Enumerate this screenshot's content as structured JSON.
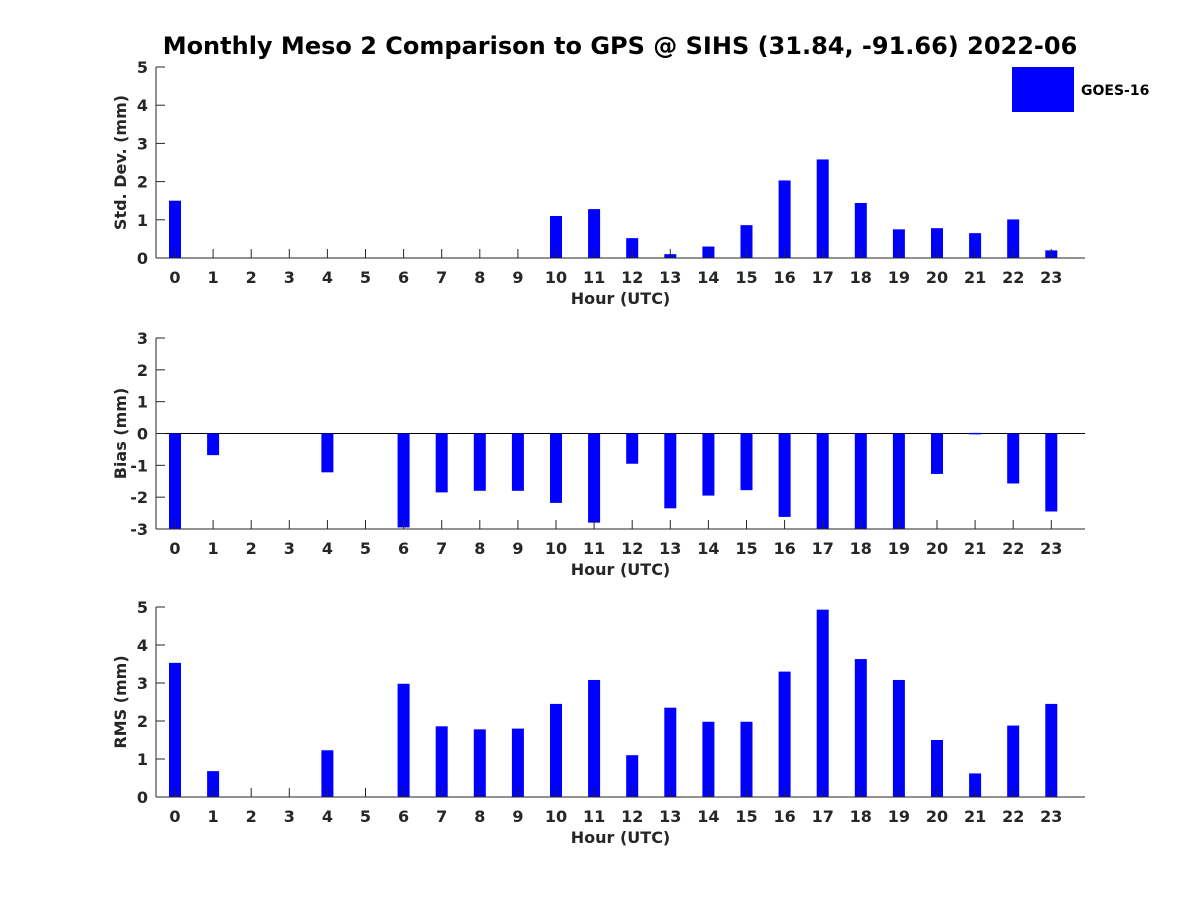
{
  "title": "Monthly Meso 2 Comparison to GPS @ SIHS (31.84, -91.66) 2022-06",
  "legend": {
    "label": "GOES-16",
    "color": "#0000ff",
    "placement": "top-right"
  },
  "chart_data": [
    {
      "type": "bar",
      "xlabel": "Hour (UTC)",
      "ylabel": "Std. Dev. (mm)",
      "ylim": [
        0,
        5
      ],
      "yticks": [
        0,
        1,
        2,
        3,
        4,
        5
      ],
      "categories": [
        0,
        1,
        2,
        3,
        4,
        5,
        6,
        7,
        8,
        9,
        10,
        11,
        12,
        13,
        14,
        15,
        16,
        17,
        18,
        19,
        20,
        21,
        22,
        23
      ],
      "series": [
        {
          "name": "GOES-16",
          "values": [
            1.5,
            null,
            null,
            null,
            null,
            null,
            null,
            null,
            null,
            null,
            1.1,
            1.28,
            0.52,
            0.1,
            0.3,
            0.86,
            2.03,
            2.58,
            1.44,
            0.75,
            0.78,
            0.65,
            1.01,
            0.2
          ]
        }
      ],
      "grid": false
    },
    {
      "type": "bar",
      "xlabel": "Hour (UTC)",
      "ylabel": "Bias (mm)",
      "ylim": [
        -3,
        3
      ],
      "yticks": [
        -3,
        -2,
        -1,
        0,
        1,
        2,
        3
      ],
      "categories": [
        0,
        1,
        2,
        3,
        4,
        5,
        6,
        7,
        8,
        9,
        10,
        11,
        12,
        13,
        14,
        15,
        16,
        17,
        18,
        19,
        20,
        21,
        22,
        23
      ],
      "series": [
        {
          "name": "GOES-16",
          "values": [
            -3.0,
            -0.68,
            null,
            null,
            -1.22,
            null,
            -2.95,
            -1.85,
            -1.8,
            -1.8,
            -2.18,
            -2.8,
            -0.95,
            -2.35,
            -1.95,
            -1.78,
            -2.62,
            -3.0,
            -3.0,
            -3.0,
            -1.27,
            0.02,
            -1.57,
            -2.45
          ]
        }
      ],
      "grid": false
    },
    {
      "type": "bar",
      "xlabel": "Hour (UTC)",
      "ylabel": "RMS (mm)",
      "ylim": [
        0,
        5
      ],
      "yticks": [
        0,
        1,
        2,
        3,
        4,
        5
      ],
      "categories": [
        0,
        1,
        2,
        3,
        4,
        5,
        6,
        7,
        8,
        9,
        10,
        11,
        12,
        13,
        14,
        15,
        16,
        17,
        18,
        19,
        20,
        21,
        22,
        23
      ],
      "series": [
        {
          "name": "GOES-16",
          "values": [
            3.53,
            0.68,
            null,
            null,
            1.23,
            null,
            2.98,
            1.86,
            1.78,
            1.8,
            2.45,
            3.08,
            1.1,
            2.35,
            1.98,
            1.98,
            3.3,
            4.93,
            3.63,
            3.08,
            1.5,
            0.62,
            1.88,
            2.45
          ]
        }
      ],
      "grid": false
    }
  ]
}
